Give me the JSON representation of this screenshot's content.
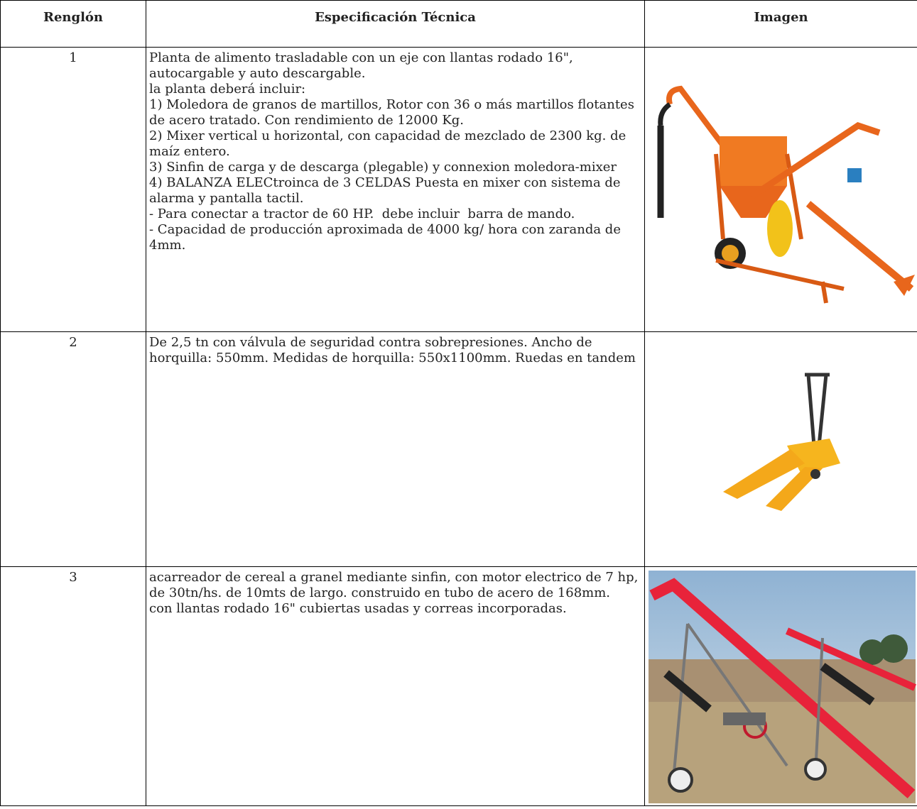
{
  "table": {
    "headers": [
      "Renglón",
      "Especificación Técnica",
      "Imagen"
    ],
    "rows": [
      {
        "number": "1",
        "spec": [
          "Planta de alimento trasladable con un eje con llantas rodado 16\", autocargable y auto descargable.",
          "la planta deberá incluir:",
          "1) Moledora de granos de martillos, Rotor con 36 o más martillos flotantes de acero tratado. Con rendimiento de 12000 Kg.",
          "2) Mixer vertical u horizontal, con capacidad de mezclado de 2300 kg. de maíz entero.",
          "3) Sinfin de carga y de descarga (plegable) y connexion moledora-mixer",
          "4) BALANZA ELECtroinca de 3 CELDAS Puesta en mixer con sistema de alarma y pantalla tactil.",
          "- Para conectar a tractor de 60 HP.  debe incluir  barra de mando.",
          "- Capacidad de producción aproximada de 4000 kg/ hora con zaranda de 4mm."
        ]
      },
      {
        "number": "2",
        "spec": [
          "De 2,5 tn con válvula de seguridad contra sobrepresiones. Ancho de horquilla: 550mm. Medidas de horquilla: 550x1100mm. Ruedas en tandem"
        ]
      },
      {
        "number": "3",
        "spec": [
          "acarreador de cereal a granel mediante sinfin, con motor electrico de 7 hp, de 30tn/hs. de 10mts de largo. construido en tubo de acero de 168mm.",
          "con llantas rodado 16\" cubiertas usadas y correas incorporadas."
        ]
      }
    ]
  }
}
